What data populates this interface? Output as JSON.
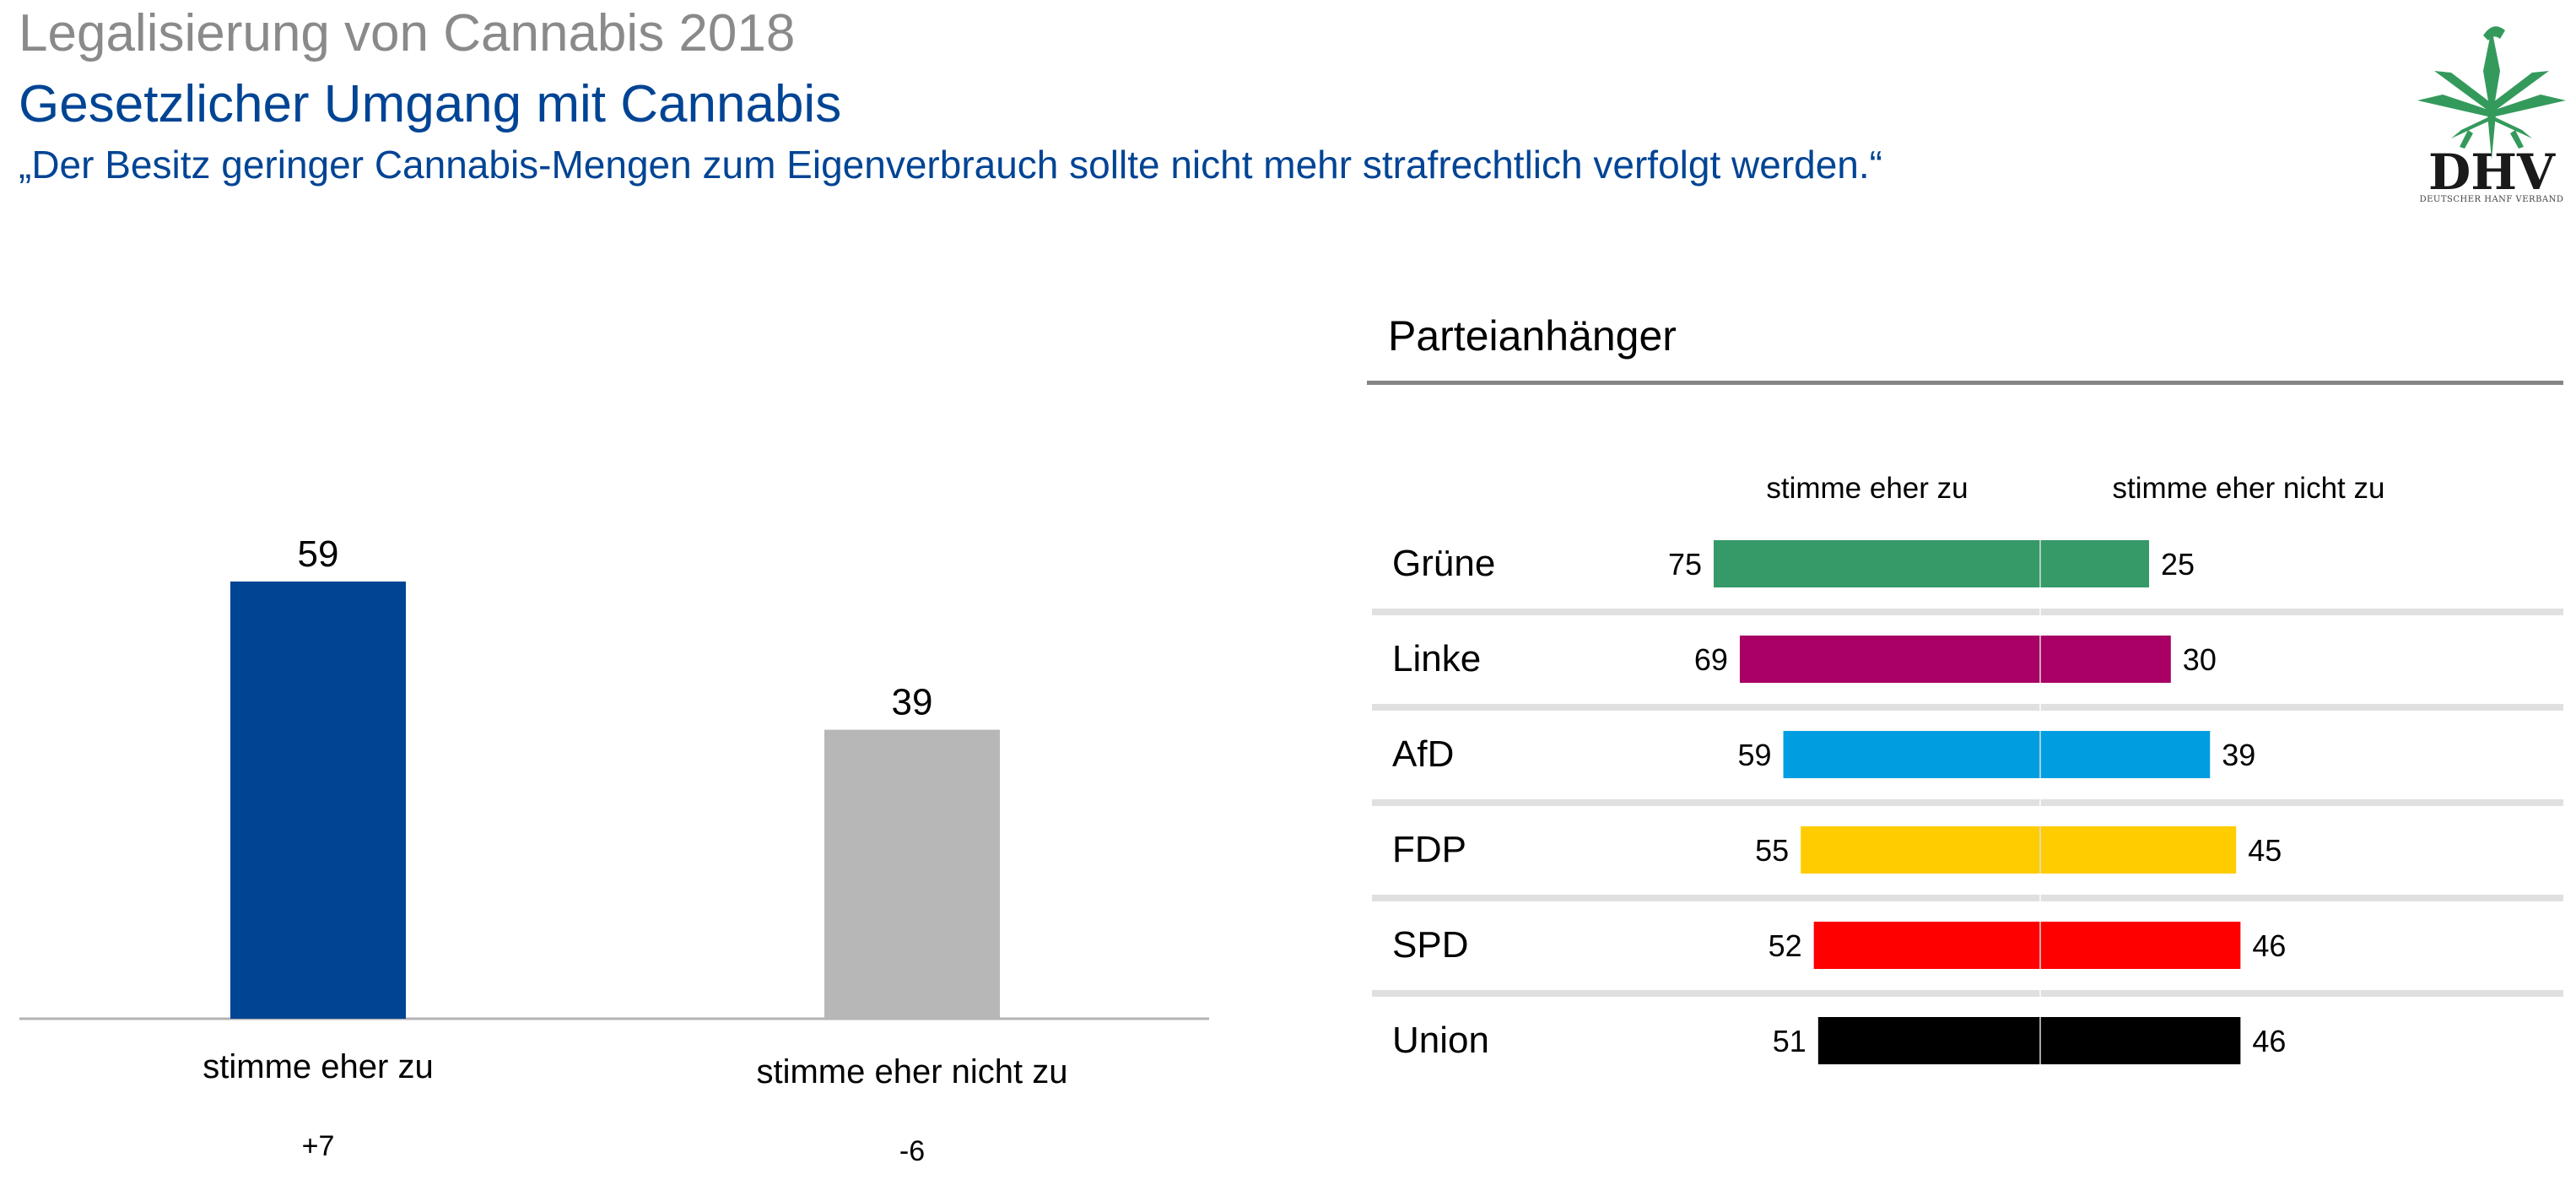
{
  "header": {
    "title": "Legalisierung von Cannabis 2018",
    "subtitle": "Gesetzlicher Umgang mit Cannabis",
    "quote": "„Der Besitz geringer Cannabis-Mengen zum Eigenverbrauch sollte nicht mehr strafrechtlich verfolgt werden.“"
  },
  "logo": {
    "icon": "cannabis-eagle-icon",
    "text": "DHV",
    "subtext": "DEUTSCHER HANF VERBAND",
    "color": "#349a5c"
  },
  "chart_data": [
    {
      "type": "bar",
      "title": "",
      "categories": [
        "stimme eher zu",
        "stimme eher nicht zu"
      ],
      "values": [
        59,
        39
      ],
      "changes": [
        "+7",
        "-6"
      ],
      "colors": [
        "#004494",
        "#b7b7b7"
      ],
      "xlabel": "",
      "ylabel": "",
      "ylim": [
        0,
        59
      ],
      "grid": false
    },
    {
      "type": "bar",
      "orientation": "diverging-horizontal",
      "title": "Parteianhänger",
      "column_headers": [
        "stimme eher zu",
        "stimme eher nicht zu"
      ],
      "categories": [
        "Grüne",
        "Linke",
        "AfD",
        "FDP",
        "SPD",
        "Union"
      ],
      "series": [
        {
          "name": "stimme eher zu",
          "values": [
            75,
            69,
            59,
            55,
            52,
            51
          ]
        },
        {
          "name": "stimme eher nicht zu",
          "values": [
            25,
            30,
            39,
            45,
            46,
            46
          ]
        }
      ],
      "colors": [
        "#359a68",
        "#a80064",
        "#009ee0",
        "#ffcc00",
        "#ff0000",
        "#000000"
      ],
      "grid": false
    }
  ]
}
